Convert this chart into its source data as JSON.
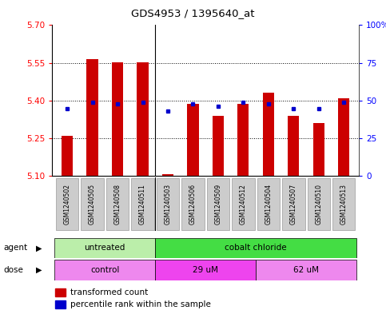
{
  "title": "GDS4953 / 1395640_at",
  "samples": [
    "GSM1240502",
    "GSM1240505",
    "GSM1240508",
    "GSM1240511",
    "GSM1240503",
    "GSM1240506",
    "GSM1240509",
    "GSM1240512",
    "GSM1240504",
    "GSM1240507",
    "GSM1240510",
    "GSM1240513"
  ],
  "bar_values": [
    5.258,
    5.565,
    5.553,
    5.553,
    5.108,
    5.388,
    5.338,
    5.388,
    5.432,
    5.338,
    5.31,
    5.41
  ],
  "blue_dot_values": [
    5.368,
    5.393,
    5.388,
    5.393,
    5.358,
    5.388,
    5.378,
    5.393,
    5.388,
    5.368,
    5.368,
    5.393
  ],
  "ylim_left": [
    5.1,
    5.7
  ],
  "ylim_right": [
    0,
    100
  ],
  "yticks_left": [
    5.1,
    5.25,
    5.4,
    5.55,
    5.7
  ],
  "yticks_right": [
    0,
    25,
    50,
    75,
    100
  ],
  "bar_color": "#cc0000",
  "dot_color": "#0000cc",
  "bar_baseline": 5.1,
  "agent_untreated_color": "#bbeeaa",
  "agent_cobalt_color": "#44dd44",
  "dose_control_color": "#ee88ee",
  "dose_29um_color": "#ee44ee",
  "dose_62um_color": "#ee88ee",
  "tick_bg_color": "#cccccc",
  "legend_bar_label": "transformed count",
  "legend_dot_label": "percentile rank within the sample",
  "separator_positions": [
    3.5
  ],
  "cobalt_separator": 3.5,
  "dose_separator1": 3.5,
  "dose_separator2": 7.5
}
